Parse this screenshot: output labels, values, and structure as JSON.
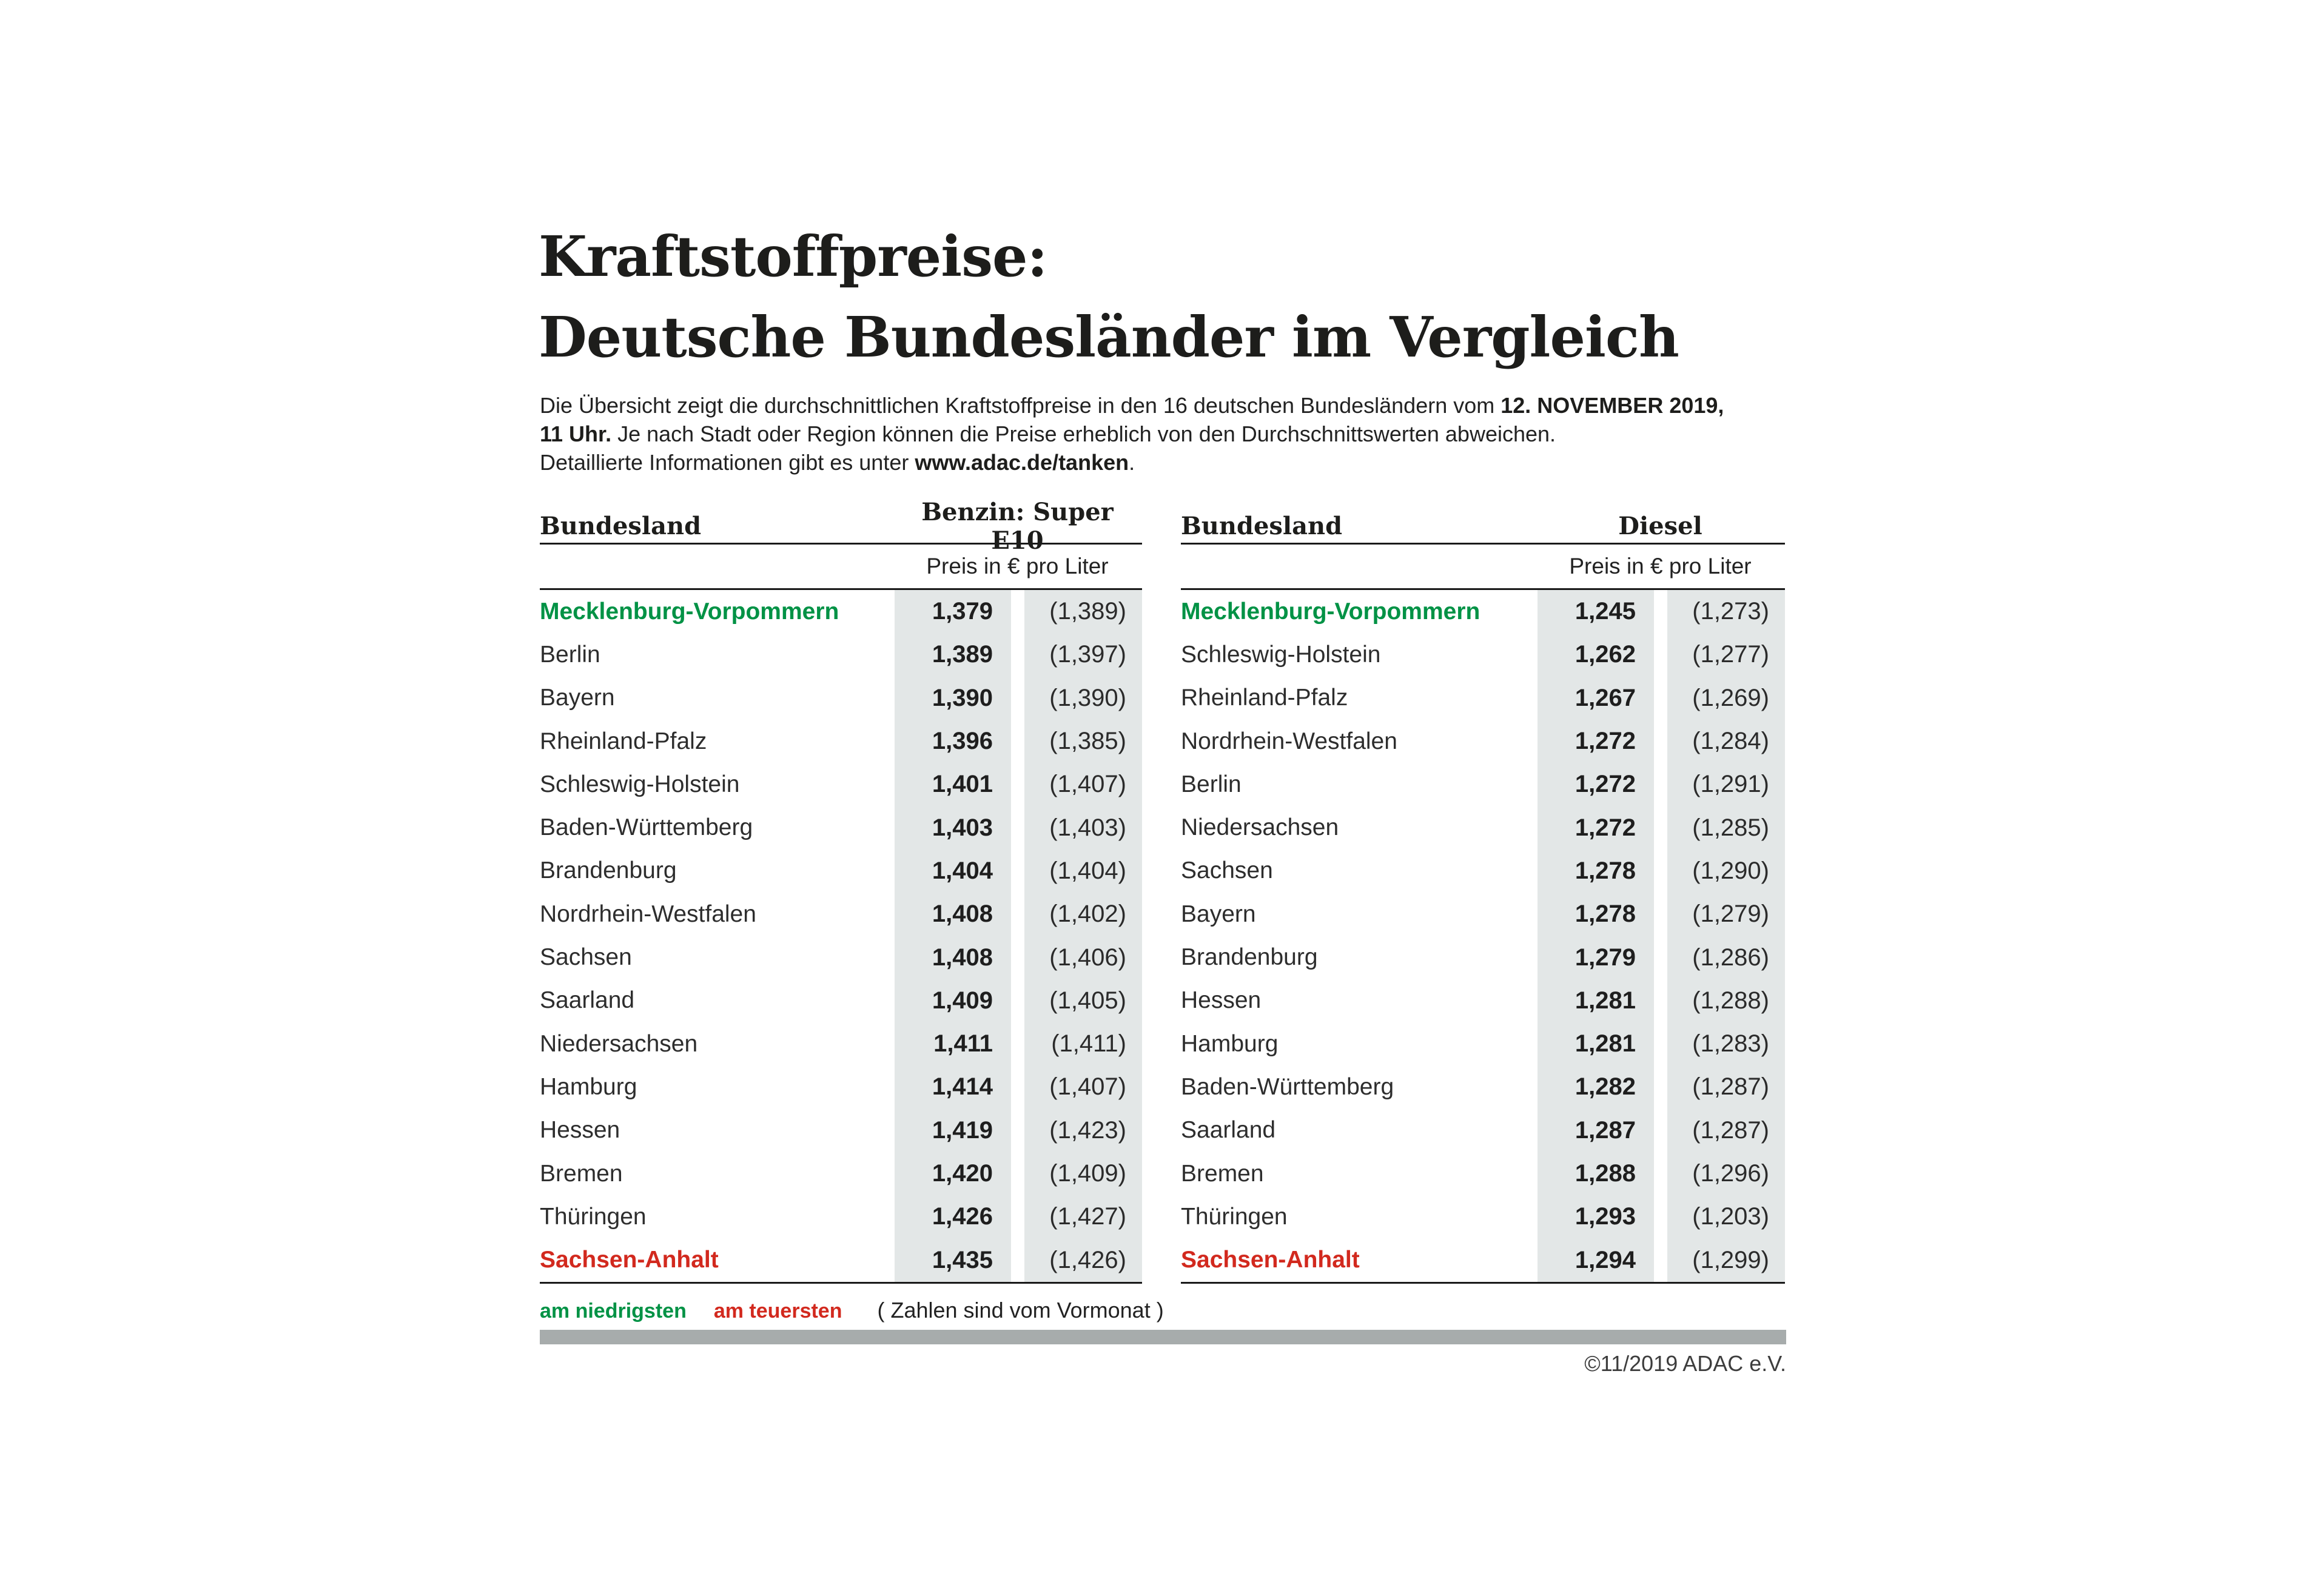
{
  "title": {
    "line1": "Kraftstoffpreise:",
    "line2": "Deutsche Bundesländer im Vergleich"
  },
  "intro": {
    "lines": [
      [
        {
          "t": "Die Übersicht zeigt die durchschnittlichen Kraftstoffpreise in den 16 deutschen Bundesländern vom ",
          "b": 0
        },
        {
          "t": "12. NOVEMBER 2019,",
          "b": 1
        }
      ],
      [
        {
          "t": "11 Uhr.",
          "b": 1
        },
        {
          "t": " Je nach Stadt oder Region können die Preise erheblich von den Durchschnittswerten abweichen.",
          "b": 0
        }
      ],
      [
        {
          "t": "Detaillierte Informationen gibt es unter ",
          "b": 0
        },
        {
          "t": "www.adac.de/tanken",
          "b": 1
        },
        {
          "t": ".",
          "b": 0
        }
      ]
    ]
  },
  "tables": [
    {
      "fuel_id": "benzin",
      "col_land": "Bundesland",
      "col_fuel": "Benzin: Super E10",
      "subheader": "Preis in € pro Liter",
      "rows": [
        {
          "land": "Mecklenburg-Vorpommern",
          "price": "1,379",
          "prev": "(1,389)",
          "highlight": "lowest"
        },
        {
          "land": "Berlin",
          "price": "1,389",
          "prev": "(1,397)"
        },
        {
          "land": "Bayern",
          "price": "1,390",
          "prev": "(1,390)"
        },
        {
          "land": "Rheinland-Pfalz",
          "price": "1,396",
          "prev": "(1,385)"
        },
        {
          "land": "Schleswig-Holstein",
          "price": "1,401",
          "prev": "(1,407)"
        },
        {
          "land": "Baden-Württemberg",
          "price": "1,403",
          "prev": "(1,403)"
        },
        {
          "land": "Brandenburg",
          "price": "1,404",
          "prev": "(1,404)"
        },
        {
          "land": "Nordrhein-Westfalen",
          "price": "1,408",
          "prev": "(1,402)"
        },
        {
          "land": "Sachsen",
          "price": "1,408",
          "prev": "(1,406)"
        },
        {
          "land": "Saarland",
          "price": "1,409",
          "prev": "(1,405)"
        },
        {
          "land": "Niedersachsen",
          "price": "1,411",
          "prev": "(1,411)"
        },
        {
          "land": "Hamburg",
          "price": "1,414",
          "prev": "(1,407)"
        },
        {
          "land": "Hessen",
          "price": "1,419",
          "prev": "(1,423)"
        },
        {
          "land": "Bremen",
          "price": "1,420",
          "prev": "(1,409)"
        },
        {
          "land": "Thüringen",
          "price": "1,426",
          "prev": "(1,427)"
        },
        {
          "land": "Sachsen-Anhalt",
          "price": "1,435",
          "prev": "(1,426)",
          "highlight": "highest"
        }
      ]
    },
    {
      "fuel_id": "diesel",
      "col_land": "Bundesland",
      "col_fuel": "Diesel",
      "subheader": "Preis in € pro Liter",
      "rows": [
        {
          "land": "Mecklenburg-Vorpommern",
          "price": "1,245",
          "prev": "(1,273)",
          "highlight": "lowest"
        },
        {
          "land": "Schleswig-Holstein",
          "price": "1,262",
          "prev": "(1,277)"
        },
        {
          "land": "Rheinland-Pfalz",
          "price": "1,267",
          "prev": "(1,269)"
        },
        {
          "land": "Nordrhein-Westfalen",
          "price": "1,272",
          "prev": "(1,284)"
        },
        {
          "land": "Berlin",
          "price": "1,272",
          "prev": "(1,291)"
        },
        {
          "land": "Niedersachsen",
          "price": "1,272",
          "prev": "(1,285)"
        },
        {
          "land": "Sachsen",
          "price": "1,278",
          "prev": "(1,290)"
        },
        {
          "land": "Bayern",
          "price": "1,278",
          "prev": "(1,279)"
        },
        {
          "land": "Brandenburg",
          "price": "1,279",
          "prev": "(1,286)"
        },
        {
          "land": "Hessen",
          "price": "1,281",
          "prev": "(1,288)"
        },
        {
          "land": "Hamburg",
          "price": "1,281",
          "prev": "(1,283)"
        },
        {
          "land": "Baden-Württemberg",
          "price": "1,282",
          "prev": "(1,287)"
        },
        {
          "land": "Saarland",
          "price": "1,287",
          "prev": "(1,287)"
        },
        {
          "land": "Bremen",
          "price": "1,288",
          "prev": "(1,296)"
        },
        {
          "land": "Thüringen",
          "price": "1,293",
          "prev": "(1,203)"
        },
        {
          "land": "Sachsen-Anhalt",
          "price": "1,294",
          "prev": "(1,299)",
          "highlight": "highest"
        }
      ]
    }
  ],
  "legend": {
    "lowest_label": "am niedrigsten",
    "highest_label": "am teuersten",
    "note": "( Zahlen sind vom Vormonat )"
  },
  "copyright": "©11/2019 ADAC e.V.",
  "colors": {
    "green": "#009245",
    "red": "#d2291e",
    "band": "#e3e7e7",
    "bar": "#a7acac",
    "rule": "#1a1a1a"
  }
}
